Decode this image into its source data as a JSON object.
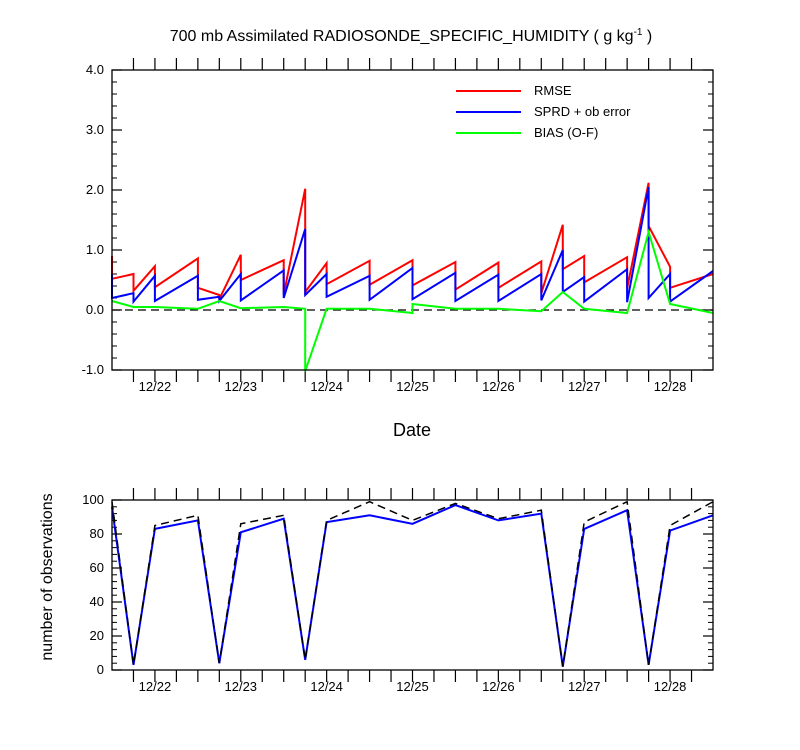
{
  "chart_data": [
    {
      "type": "line",
      "title_main": "700 mb Assimilated RADIOSONDE_SPECIFIC_HUMIDITY ( g kg",
      "title_sup": "-1",
      "title_end": " )",
      "xlabel": "Date",
      "ylabel": "",
      "xlim": [
        0,
        35
      ],
      "ylim": [
        -1.0,
        4.0
      ],
      "yticks": [
        -1.0,
        0.0,
        1.0,
        2.0,
        3.0,
        4.0
      ],
      "ytick_labels": [
        "-1.0",
        "0.0",
        "1.0",
        "2.0",
        "3.0",
        "4.0"
      ],
      "xticks": [
        2.5,
        7.5,
        12.5,
        17.5,
        22.5,
        27.5,
        32.5
      ],
      "xtick_labels": [
        "12/22",
        "12/23",
        "12/24",
        "12/25",
        "12/26",
        "12/27",
        "12/28"
      ],
      "zero_line": 0.0,
      "legend_position": "top-right",
      "series": [
        {
          "name": "RMSE",
          "color": "#ff0000",
          "x": [
            0,
            0,
            1.25,
            1.25,
            2.5,
            2.5,
            5,
            5,
            6.25,
            6.25,
            7.5,
            7.5,
            10,
            10,
            11.25,
            11.25,
            12.5,
            12.5,
            15,
            15,
            17.5,
            17.5,
            20,
            20,
            22.5,
            22.5,
            25,
            25,
            26.25,
            26.25,
            27.5,
            27.5,
            30,
            30,
            31.25,
            31.25,
            32.5,
            32.5,
            35
          ],
          "y": [
            0.9,
            0.52,
            0.6,
            0.32,
            0.73,
            0.38,
            0.86,
            0.37,
            0.25,
            0.18,
            0.92,
            0.5,
            0.83,
            0.26,
            2.02,
            0.3,
            0.78,
            0.43,
            0.82,
            0.42,
            0.83,
            0.41,
            0.8,
            0.34,
            0.79,
            0.37,
            0.81,
            0.28,
            1.42,
            0.68,
            0.9,
            0.46,
            0.88,
            0.36,
            2.12,
            1.4,
            0.72,
            0.37,
            0.6
          ]
        },
        {
          "name": "SPRD + ob error",
          "color": "#0000ff",
          "x": [
            0,
            0,
            1.25,
            1.25,
            2.5,
            2.5,
            5,
            5,
            6.25,
            6.25,
            7.5,
            7.5,
            10,
            10,
            11.25,
            11.25,
            12.5,
            12.5,
            15,
            15,
            17.5,
            17.5,
            20,
            20,
            22.5,
            22.5,
            25,
            25,
            26.25,
            26.25,
            27.5,
            27.5,
            30,
            30,
            31.25,
            31.25,
            32.5,
            32.5,
            35
          ],
          "y": [
            0.6,
            0.2,
            0.28,
            0.14,
            0.57,
            0.15,
            0.57,
            0.17,
            0.22,
            0.15,
            0.6,
            0.16,
            0.66,
            0.2,
            1.35,
            0.25,
            0.6,
            0.22,
            0.57,
            0.17,
            0.7,
            0.18,
            0.62,
            0.15,
            0.59,
            0.15,
            0.6,
            0.16,
            1.0,
            0.3,
            0.55,
            0.14,
            0.68,
            0.13,
            2.05,
            0.2,
            0.6,
            0.14,
            0.65
          ]
        },
        {
          "name": "BIAS (O-F)",
          "color": "#00ff00",
          "x": [
            0,
            1.25,
            2.5,
            5,
            6.25,
            7.5,
            10,
            11.25,
            11.25,
            12.5,
            15,
            17.5,
            17.5,
            20,
            22.5,
            25,
            26.25,
            27.5,
            30,
            31.25,
            32.5,
            35
          ],
          "y": [
            0.15,
            0.05,
            0.05,
            0.02,
            0.15,
            0.03,
            0.05,
            0.02,
            -1.02,
            0.02,
            0.02,
            -0.05,
            0.1,
            0.02,
            0.02,
            -0.02,
            0.3,
            0.02,
            -0.05,
            1.3,
            0.1,
            -0.05
          ]
        }
      ]
    },
    {
      "type": "line",
      "title": "",
      "xlabel": "",
      "ylabel": "number of observations",
      "xlim": [
        0,
        35
      ],
      "ylim": [
        0,
        100
      ],
      "yticks": [
        0,
        20,
        40,
        60,
        80,
        100
      ],
      "ytick_labels": [
        "0",
        "20",
        "40",
        "60",
        "80",
        "100"
      ],
      "xticks": [
        2.5,
        7.5,
        12.5,
        17.5,
        22.5,
        27.5,
        32.5
      ],
      "xtick_labels": [
        "12/22",
        "12/23",
        "12/24",
        "12/25",
        "12/26",
        "12/27",
        "12/28"
      ],
      "series": [
        {
          "color": "#0000ff",
          "dash": "solid",
          "x": [
            0,
            1.25,
            2.5,
            5,
            6.25,
            7.5,
            10,
            11.25,
            12.5,
            15,
            17.5,
            20,
            22.5,
            25,
            26.25,
            27.5,
            30,
            31.25,
            32.5,
            35
          ],
          "y": [
            96,
            3,
            83,
            88,
            4,
            81,
            89,
            6,
            87,
            91,
            86,
            97,
            88,
            92,
            2,
            83,
            94,
            3,
            82,
            91
          ]
        },
        {
          "color": "#000000",
          "dash": "dashed",
          "x": [
            0,
            1.25,
            2.5,
            5,
            6.25,
            7.5,
            10,
            11.25,
            12.5,
            15,
            17.5,
            20,
            22.5,
            25,
            26.25,
            27.5,
            30,
            31.25,
            32.5,
            35
          ],
          "y": [
            99,
            3,
            85,
            91,
            4,
            86,
            91,
            6,
            88,
            99,
            88,
            98,
            89,
            94,
            2,
            87,
            99,
            3,
            85,
            99
          ]
        }
      ]
    }
  ]
}
